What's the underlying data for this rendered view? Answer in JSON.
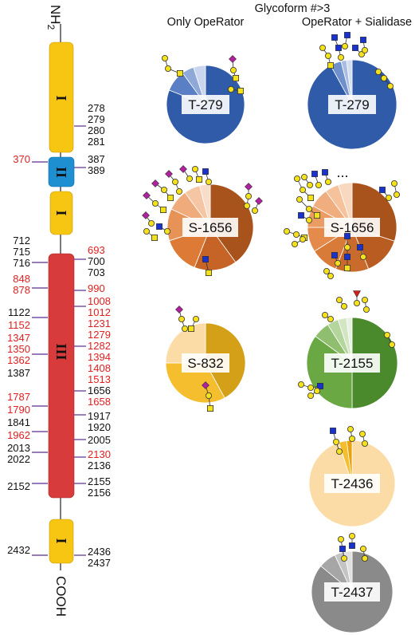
{
  "header": {
    "title": "Glycoform #>3",
    "col1": "Only OpeRator",
    "col2": "OpeRator + Sialidase"
  },
  "termini": {
    "n": "NH",
    "n_sub": "2",
    "c": "COOH"
  },
  "domain_labels": [
    "I",
    "II",
    "I",
    "III",
    "I"
  ],
  "colors": {
    "domain_I": "#f7c613",
    "domain_II": "#1e8fd1",
    "domain_III": "#d83b3b",
    "red_site": "#e02020",
    "black_site": "#111111",
    "tick": "#5a2d91",
    "gal": "#f4e11a",
    "galnac": "#f4e11a",
    "glcnac": "#1a33cc",
    "sialic": "#b0209f",
    "fucose": "#d81b1b"
  },
  "site_labels": {
    "left": [
      {
        "text": "370",
        "color": "red"
      },
      {
        "text": "712",
        "color": "black"
      },
      {
        "text": "715",
        "color": "black"
      },
      {
        "text": "716",
        "color": "black"
      },
      {
        "text": "848",
        "color": "red"
      },
      {
        "text": "878",
        "color": "red"
      },
      {
        "text": "1122",
        "color": "black"
      },
      {
        "text": "1152",
        "color": "red"
      },
      {
        "text": "1347",
        "color": "red"
      },
      {
        "text": "1350",
        "color": "red"
      },
      {
        "text": "1362",
        "color": "red"
      },
      {
        "text": "1387",
        "color": "black"
      },
      {
        "text": "1787",
        "color": "red"
      },
      {
        "text": "1790",
        "color": "red"
      },
      {
        "text": "1841",
        "color": "black"
      },
      {
        "text": "1962",
        "color": "red"
      },
      {
        "text": "2013",
        "color": "black"
      },
      {
        "text": "2022",
        "color": "black"
      },
      {
        "text": "2152",
        "color": "black"
      },
      {
        "text": "2432",
        "color": "black"
      }
    ],
    "right": [
      {
        "text": "278",
        "color": "black"
      },
      {
        "text": "279",
        "color": "black"
      },
      {
        "text": "280",
        "color": "black"
      },
      {
        "text": "281",
        "color": "black"
      },
      {
        "text": "387",
        "color": "black"
      },
      {
        "text": "389",
        "color": "black"
      },
      {
        "text": "693",
        "color": "red"
      },
      {
        "text": "700",
        "color": "black"
      },
      {
        "text": "703",
        "color": "black"
      },
      {
        "text": "990",
        "color": "red"
      },
      {
        "text": "1008",
        "color": "red"
      },
      {
        "text": "1012",
        "color": "red"
      },
      {
        "text": "1231",
        "color": "red"
      },
      {
        "text": "1279",
        "color": "red"
      },
      {
        "text": "1282",
        "color": "red"
      },
      {
        "text": "1394",
        "color": "red"
      },
      {
        "text": "1408",
        "color": "red"
      },
      {
        "text": "1513",
        "color": "red"
      },
      {
        "text": "1656",
        "color": "black"
      },
      {
        "text": "1658",
        "color": "red"
      },
      {
        "text": "1917",
        "color": "black"
      },
      {
        "text": "1920",
        "color": "black"
      },
      {
        "text": "2005",
        "color": "black"
      },
      {
        "text": "2130",
        "color": "red"
      },
      {
        "text": "2136",
        "color": "black"
      },
      {
        "text": "2155",
        "color": "black"
      },
      {
        "text": "2156",
        "color": "black"
      },
      {
        "text": "2436",
        "color": "black"
      },
      {
        "text": "2437",
        "color": "black"
      }
    ]
  },
  "pies": [
    {
      "label": "T-279",
      "group": "only_operator",
      "slices": [
        {
          "value": 81,
          "color": "#2f5ba8"
        },
        {
          "value": 9,
          "color": "#5a7fc4"
        },
        {
          "value": 5,
          "color": "#8ea8d8"
        },
        {
          "value": 5,
          "color": "#c9d6ee"
        }
      ]
    },
    {
      "label": "T-279",
      "group": "operator_sialidase",
      "slices": [
        {
          "value": 92,
          "color": "#2f5ba8"
        },
        {
          "value": 4,
          "color": "#6f8fcd"
        },
        {
          "value": 2,
          "color": "#a9bde3"
        },
        {
          "value": 2,
          "color": "#d4def1"
        }
      ]
    },
    {
      "label": "S-1656",
      "group": "only_operator",
      "slices": [
        {
          "value": 40,
          "color": "#a8521c"
        },
        {
          "value": 16,
          "color": "#c56426"
        },
        {
          "value": 14,
          "color": "#dc7a36"
        },
        {
          "value": 12,
          "color": "#e79257"
        },
        {
          "value": 8,
          "color": "#efab7c"
        },
        {
          "value": 6,
          "color": "#f5c6a4"
        },
        {
          "value": 4,
          "color": "#f9ddc8"
        }
      ]
    },
    {
      "label": "S-1656",
      "group": "operator_sialidase",
      "slices": [
        {
          "value": 30,
          "color": "#a8521c"
        },
        {
          "value": 14,
          "color": "#b95c22"
        },
        {
          "value": 12,
          "color": "#c96b2c"
        },
        {
          "value": 10,
          "color": "#d97b38"
        },
        {
          "value": 9,
          "color": "#e48a4a"
        },
        {
          "value": 8,
          "color": "#eb9c62"
        },
        {
          "value": 7,
          "color": "#f0ae7e"
        },
        {
          "value": 5,
          "color": "#f5c29c"
        },
        {
          "value": 5,
          "color": "#f9d8c0"
        }
      ]
    },
    {
      "label": "S-832",
      "group": "only_operator",
      "slices": [
        {
          "value": 42,
          "color": "#d4a017"
        },
        {
          "value": 33,
          "color": "#f5be2e"
        },
        {
          "value": 25,
          "color": "#fcdca6"
        }
      ]
    },
    {
      "label": "T-2155",
      "group": "operator_sialidase",
      "slices": [
        {
          "value": 50,
          "color": "#4a8a2c"
        },
        {
          "value": 35,
          "color": "#6aa843"
        },
        {
          "value": 6,
          "color": "#8fbf6e"
        },
        {
          "value": 4,
          "color": "#b4d59c"
        },
        {
          "value": 3,
          "color": "#d2e6c4"
        },
        {
          "value": 2,
          "color": "#e8f1e0"
        }
      ]
    },
    {
      "label": "T-2436",
      "group": "operator_sialidase",
      "slices": [
        {
          "value": 95,
          "color": "#fcdca6"
        },
        {
          "value": 3,
          "color": "#f5be2e"
        },
        {
          "value": 2,
          "color": "#e8a20c"
        }
      ]
    },
    {
      "label": "T-2437",
      "group": "operator_sialidase",
      "slices": [
        {
          "value": 86,
          "color": "#8a8a8a"
        },
        {
          "value": 7,
          "color": "#a6a6a6"
        },
        {
          "value": 4,
          "color": "#c4c4c4"
        },
        {
          "value": 3,
          "color": "#e0e0e0"
        }
      ]
    }
  ],
  "more_glycans_marker": "..."
}
